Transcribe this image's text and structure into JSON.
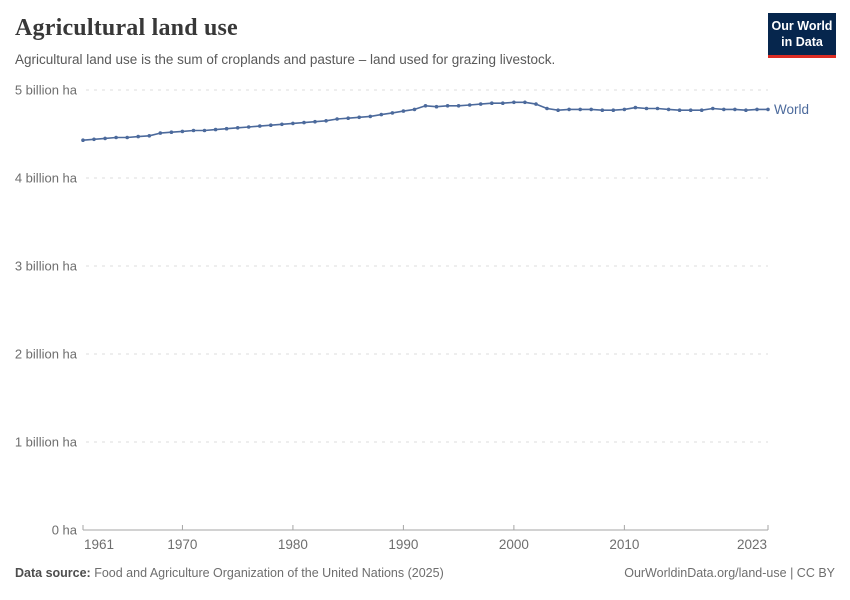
{
  "header": {
    "title": "Agricultural land use",
    "subtitle": "Agricultural land use is the sum of croplands and pasture – land used for grazing livestock."
  },
  "logo": {
    "line1": "Our World",
    "line2": "in Data",
    "bg_color": "#06264d",
    "accent_color": "#dc2c23"
  },
  "chart_data": {
    "type": "line",
    "title": "Agricultural land use",
    "unit": "billion ha",
    "xlim": [
      1961,
      2023
    ],
    "ylim": [
      0,
      5
    ],
    "grid": "horizontal-dashed",
    "legend_position": "end-of-line",
    "x_ticks": [
      1961,
      1970,
      1980,
      1990,
      2000,
      2010,
      2023
    ],
    "y_ticks": [
      {
        "value": 0,
        "label": "0 ha"
      },
      {
        "value": 1,
        "label": "1 billion ha"
      },
      {
        "value": 2,
        "label": "2 billion ha"
      },
      {
        "value": 3,
        "label": "3 billion ha"
      },
      {
        "value": 4,
        "label": "4 billion ha"
      },
      {
        "value": 5,
        "label": "5 billion ha"
      }
    ],
    "series": [
      {
        "name": "World",
        "color": "#4c6a9c",
        "x": [
          1961,
          1962,
          1963,
          1964,
          1965,
          1966,
          1967,
          1968,
          1969,
          1970,
          1971,
          1972,
          1973,
          1974,
          1975,
          1976,
          1977,
          1978,
          1979,
          1980,
          1981,
          1982,
          1983,
          1984,
          1985,
          1986,
          1987,
          1988,
          1989,
          1990,
          1991,
          1992,
          1993,
          1994,
          1995,
          1996,
          1997,
          1998,
          1999,
          2000,
          2001,
          2002,
          2003,
          2004,
          2005,
          2006,
          2007,
          2008,
          2009,
          2010,
          2011,
          2012,
          2013,
          2014,
          2015,
          2016,
          2017,
          2018,
          2019,
          2020,
          2021,
          2022,
          2023
        ],
        "values": [
          4.43,
          4.44,
          4.45,
          4.46,
          4.46,
          4.47,
          4.48,
          4.51,
          4.52,
          4.53,
          4.54,
          4.54,
          4.55,
          4.56,
          4.57,
          4.58,
          4.59,
          4.6,
          4.61,
          4.62,
          4.63,
          4.64,
          4.65,
          4.67,
          4.68,
          4.69,
          4.7,
          4.72,
          4.74,
          4.76,
          4.78,
          4.82,
          4.81,
          4.82,
          4.82,
          4.83,
          4.84,
          4.85,
          4.85,
          4.86,
          4.86,
          4.84,
          4.79,
          4.77,
          4.78,
          4.78,
          4.78,
          4.77,
          4.77,
          4.78,
          4.8,
          4.79,
          4.79,
          4.78,
          4.77,
          4.77,
          4.77,
          4.79,
          4.78,
          4.78,
          4.77,
          4.78,
          4.78
        ]
      }
    ],
    "style": {
      "grid_color": "#dddddd",
      "axis_color": "#a5a5a5",
      "tick_label_color": "#6e6e6e"
    }
  },
  "footer": {
    "source_label": "Data source:",
    "source_text": "Food and Agriculture Organization of the United Nations (2025)",
    "link_text": "OurWorldinData.org/land-use",
    "separator": "|",
    "license": "CC BY"
  }
}
